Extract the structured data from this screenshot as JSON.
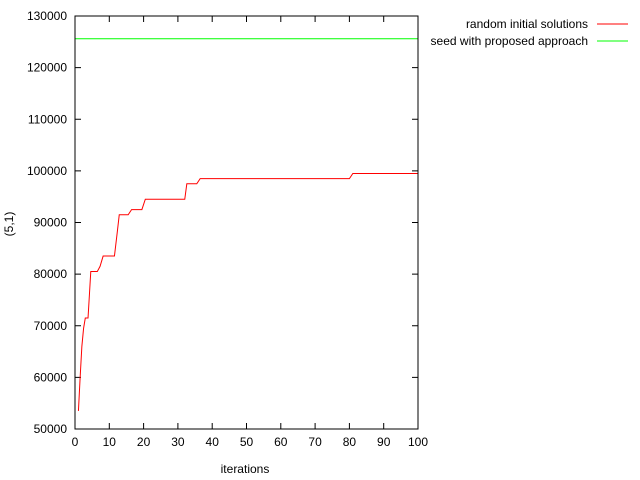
{
  "chart_data": {
    "type": "line",
    "title": "",
    "xlabel": "iterations",
    "ylabel": "(5,1)",
    "xlim": [
      0,
      100
    ],
    "ylim": [
      50000,
      130000
    ],
    "xticks": [
      0,
      10,
      20,
      30,
      40,
      50,
      60,
      70,
      80,
      90,
      100
    ],
    "yticks": [
      50000,
      60000,
      70000,
      80000,
      90000,
      100000,
      110000,
      120000,
      130000
    ],
    "grid": false,
    "legend": "top-right outside plot",
    "series": [
      {
        "name": "random initial solutions",
        "color": "#ff0000",
        "points": [
          [
            1,
            53500
          ],
          [
            1.5,
            60000
          ],
          [
            2,
            66000
          ],
          [
            2.5,
            69500
          ],
          [
            3,
            71500
          ],
          [
            3.8,
            71500
          ],
          [
            4.2,
            76000
          ],
          [
            4.6,
            80500
          ],
          [
            6.5,
            80500
          ],
          [
            7.3,
            81500
          ],
          [
            8.2,
            83500
          ],
          [
            11.5,
            83500
          ],
          [
            12.3,
            88000
          ],
          [
            12.9,
            91500
          ],
          [
            15.5,
            91500
          ],
          [
            16.5,
            92500
          ],
          [
            19.5,
            92500
          ],
          [
            20.5,
            94500
          ],
          [
            32,
            94500
          ],
          [
            32.6,
            97500
          ],
          [
            35.5,
            97500
          ],
          [
            36.5,
            98500
          ],
          [
            80,
            98500
          ],
          [
            81,
            99500
          ],
          [
            100,
            99500
          ]
        ]
      },
      {
        "name": "seed with proposed approach",
        "color": "#00ff00",
        "points": [
          [
            0,
            125600
          ],
          [
            100,
            125600
          ]
        ]
      }
    ]
  }
}
